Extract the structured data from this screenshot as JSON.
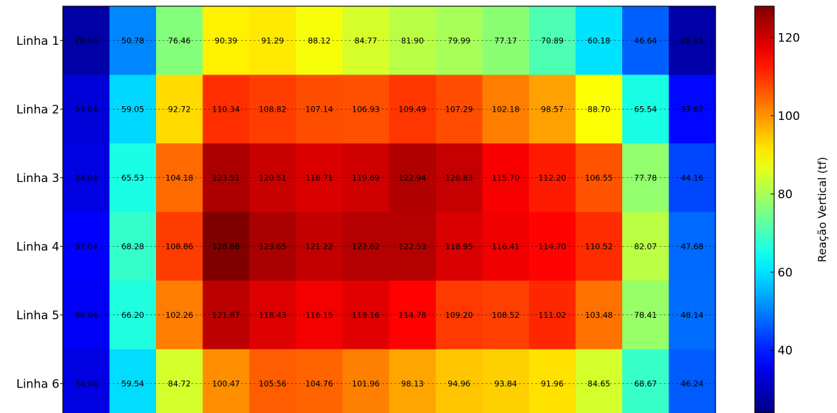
{
  "chart_data": {
    "type": "heatmap",
    "rows": [
      "Linha 1",
      "Linha 2",
      "Linha 3",
      "Linha 4",
      "Linha 5",
      "Linha 6"
    ],
    "values": [
      [
        28.04,
        50.78,
        76.46,
        90.39,
        91.29,
        88.12,
        84.77,
        81.9,
        79.99,
        77.17,
        70.89,
        60.18,
        46.64,
        28.15
      ],
      [
        33.04,
        59.05,
        92.72,
        110.34,
        108.82,
        107.14,
        106.93,
        109.49,
        107.29,
        102.18,
        98.57,
        88.7,
        65.54,
        37.62
      ],
      [
        34.04,
        65.53,
        104.18,
        123.51,
        120.51,
        118.71,
        119.69,
        122.94,
        120.83,
        115.7,
        112.2,
        106.55,
        77.78,
        44.16
      ],
      [
        37.04,
        68.28,
        108.86,
        128.68,
        123.65,
        121.22,
        122.62,
        122.53,
        118.95,
        116.41,
        114.7,
        110.52,
        82.07,
        47.68
      ],
      [
        36.04,
        66.2,
        102.26,
        121.87,
        118.43,
        116.15,
        118.16,
        114.78,
        109.2,
        108.52,
        111.02,
        103.48,
        78.41,
        48.14
      ],
      [
        34.04,
        59.54,
        84.72,
        100.47,
        105.56,
        104.76,
        101.96,
        98.13,
        94.96,
        93.84,
        91.96,
        84.65,
        68.67,
        46.24
      ]
    ],
    "labels": [
      [
        "28.04",
        "50.78",
        "76.46",
        "90.39",
        "91.29",
        "88.12",
        "84.77",
        "81.90",
        "79.99",
        "77.17",
        "70.89",
        "60.18",
        "46.64",
        "28.15"
      ],
      [
        "33.04",
        "59.05",
        "92.72",
        "110.34",
        "108.82",
        "107.14",
        "106.93",
        "109.49",
        "107.29",
        "102.18",
        "98.57",
        "88.70",
        "65.54",
        "37.62"
      ],
      [
        "34.04",
        "65.53",
        "104.18",
        "123.51",
        "120.51",
        "118.71",
        "119.69",
        "122.94",
        "120.83",
        "115.70",
        "112.20",
        "106.55",
        "77.78",
        "44.16"
      ],
      [
        "37.04",
        "68.28",
        "108.86",
        "128.68",
        "123.65",
        "121.22",
        "122.62",
        "122.53",
        "118.95",
        "116.41",
        "114.70",
        "110.52",
        "82.07",
        "47.68"
      ],
      [
        "36.04",
        "66.20",
        "102.26",
        "121.87",
        "118.43",
        "116.15",
        "118.16",
        "114.78",
        "109.20",
        "108.52",
        "111.02",
        "103.48",
        "78.41",
        "48.14"
      ],
      [
        "34.04",
        "59.54",
        "84.72",
        "100.47",
        "105.56",
        "104.76",
        "101.96",
        "98.13",
        "94.96",
        "93.84",
        "91.96",
        "84.65",
        "68.67",
        "46.24"
      ]
    ],
    "colormap": "jet",
    "color_range": [
      24,
      128
    ],
    "colorbar": {
      "label": "Reação Vertical (tf)",
      "ticks": [
        40,
        60,
        80,
        100,
        120
      ],
      "tick_labels": [
        "40",
        "60",
        "80",
        "100",
        "120"
      ]
    },
    "grid": true,
    "grid_style": "dashed horizontal lines through row centers"
  }
}
